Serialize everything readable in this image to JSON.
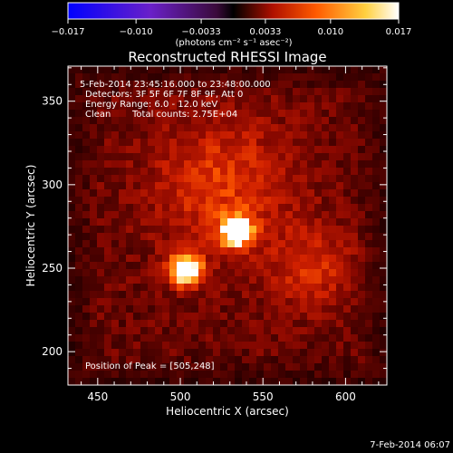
{
  "chart_data": {
    "type": "heatmap",
    "title": "Reconstructed RHESSI Image",
    "xlabel": "Heliocentric X (arcsec)",
    "ylabel": "Heliocentric Y (arcsec)",
    "xlim": [
      432,
      625
    ],
    "ylim": [
      180,
      371
    ],
    "x_ticks": [
      450,
      500,
      550,
      600
    ],
    "y_ticks": [
      200,
      250,
      300,
      350
    ],
    "colorbar": {
      "min": -0.017,
      "max": 0.017,
      "tick_labels": [
        "-0.017",
        "-0.010",
        "-0.0033",
        "0.0033",
        "0.010",
        "0.017"
      ],
      "units_label": "(photons cm⁻² s⁻¹ asec⁻²)",
      "colormap": [
        "#0000ff",
        "#6a20c8",
        "#3a0a3a",
        "#000000",
        "#b01000",
        "#ff5a00",
        "#ffd040",
        "#ffffff"
      ]
    },
    "annotations": [
      "5-Feb-2014 23:45:16.000 to 23:48:00.000",
      "Detectors: 3F 5F 6F 7F 8F 9F, Att 0",
      "Energy Range: 6.0 - 12.0 keV",
      "Clean",
      "Total counts: 2.75E+04"
    ],
    "peak_label": "Position of Peak = [505,248]",
    "peak": [
      505,
      248
    ],
    "sources": [
      {
        "x": 503,
        "y": 249,
        "intensity": 0.017,
        "sigma": 7
      },
      {
        "x": 534,
        "y": 272,
        "intensity": 0.0135,
        "sigma": 7
      },
      {
        "x": 525,
        "y": 300,
        "intensity": 0.006,
        "sigma": 30
      },
      {
        "x": 580,
        "y": 250,
        "intensity": 0.005,
        "sigma": 18
      }
    ],
    "background_level": 0.0045,
    "footer_date": "7-Feb-2014 06:07"
  }
}
